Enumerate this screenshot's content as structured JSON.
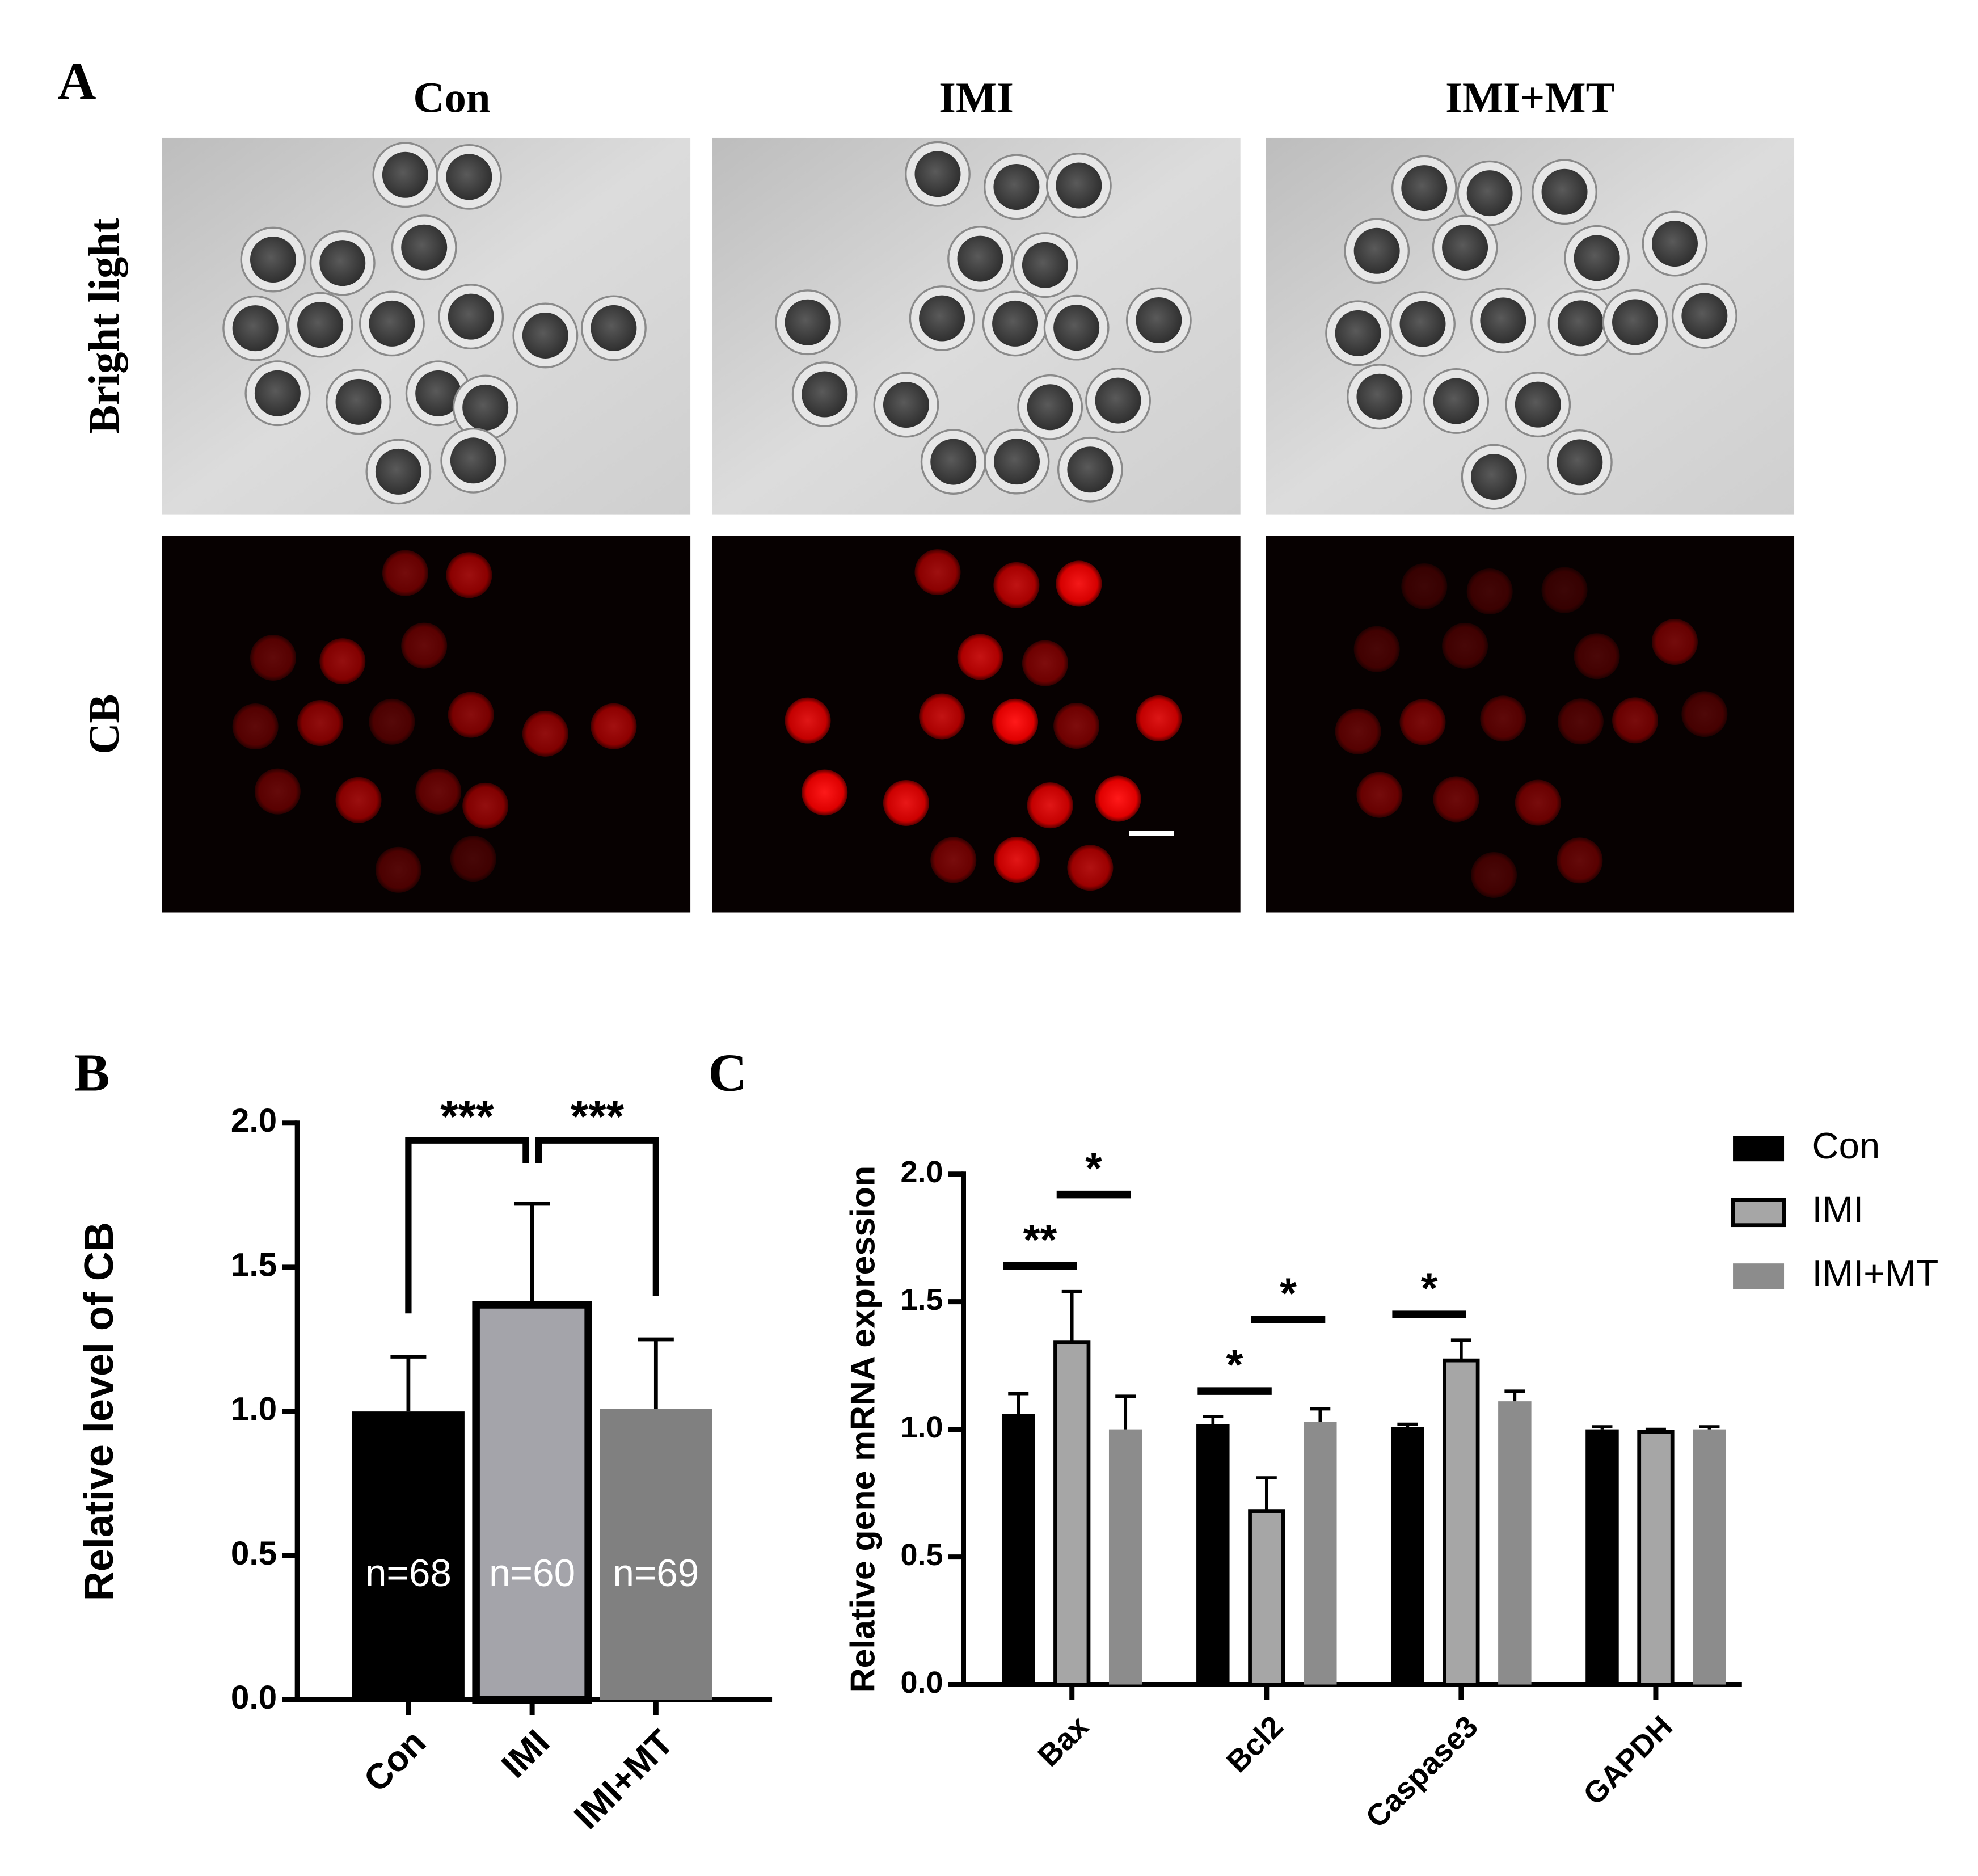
{
  "panel_a": {
    "label": "A",
    "columns": [
      "Con",
      "IMI",
      "IMI+MT"
    ],
    "rows": [
      "Bright light",
      "CB"
    ]
  },
  "chart_data": [
    {
      "type": "bar",
      "panel_label": "B",
      "y_label": "Relative level of CB",
      "categories": [
        "Con",
        "IMI",
        "IMI+MT"
      ],
      "values": [
        1.0,
        1.37,
        1.01
      ],
      "errors": [
        0.19,
        0.35,
        0.24
      ],
      "colors": [
        "#000000",
        "#a4a4aa",
        "#808080"
      ],
      "bar_labels": [
        "n=68",
        "n=60",
        "n=69"
      ],
      "significance": [
        {
          "label": "***",
          "groups": [
            "Con",
            "IMI"
          ]
        },
        {
          "label": "***",
          "groups": [
            "IMI",
            "IMI+MT"
          ]
        }
      ],
      "ylim": [
        0,
        2
      ],
      "yticks": [
        {
          "value": 0,
          "label": "0.0"
        },
        0.5,
        {
          "value": 1,
          "label": "1.0"
        },
        1.5,
        {
          "value": 2,
          "label": "2.0"
        }
      ]
    },
    {
      "type": "grouped_bar",
      "panel_label": "C",
      "y_label": "Relative gene mRNA expression",
      "categories": [
        "Bax",
        "Bcl2",
        "Caspase3",
        "GAPDH"
      ],
      "series": [
        {
          "name": "Con",
          "color": "#000000",
          "values": [
            1.06,
            1.02,
            1.01,
            1.0
          ],
          "errors": [
            0.08,
            0.03,
            0.01,
            0.01
          ]
        },
        {
          "name": "IMI",
          "color": "#a6a6a6",
          "values": [
            1.34,
            0.68,
            1.27,
            0.99
          ],
          "errors": [
            0.2,
            0.13,
            0.08,
            0.01
          ]
        },
        {
          "name": "IMI+MT",
          "color": "#8c8c8c",
          "values": [
            1.0,
            1.03,
            1.11,
            1.0
          ],
          "errors": [
            0.13,
            0.05,
            0.04,
            0.01
          ]
        }
      ],
      "significance": [
        {
          "label": "**",
          "category": "Bax",
          "groups": [
            "Con",
            "IMI"
          ]
        },
        {
          "label": "*",
          "category": "Bax",
          "groups": [
            "IMI",
            "IMI+MT"
          ]
        },
        {
          "label": "*",
          "category": "Bcl2",
          "groups": [
            "Con",
            "IMI"
          ]
        },
        {
          "label": "*",
          "category": "Bcl2",
          "groups": [
            "IMI",
            "IMI+MT"
          ]
        },
        {
          "label": "*",
          "category": "Caspase3",
          "groups": [
            "Con",
            "IMI"
          ]
        }
      ],
      "legend": "upper right",
      "ylim": [
        0,
        2
      ],
      "yticks": [
        {
          "value": 0,
          "label": "0.0"
        },
        0.5,
        {
          "value": 1,
          "label": "1.0"
        },
        1.5,
        {
          "value": 2,
          "label": "2.0"
        }
      ]
    }
  ]
}
